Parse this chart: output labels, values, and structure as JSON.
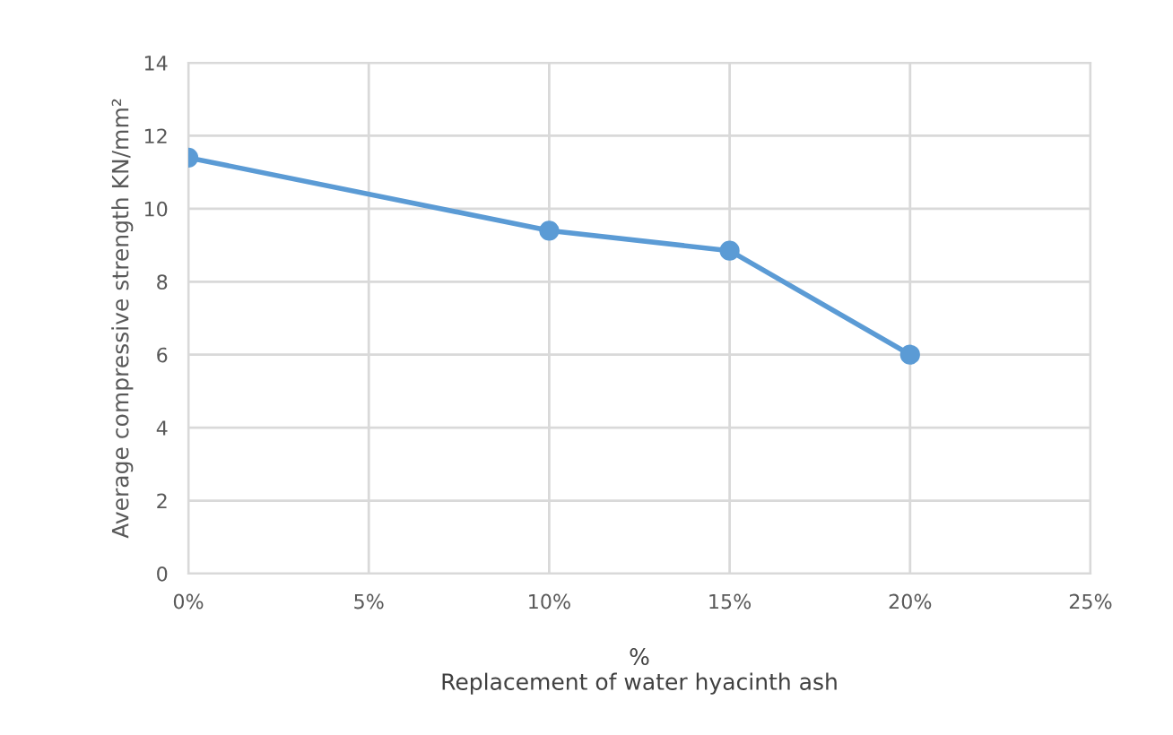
{
  "chart_data": {
    "type": "line",
    "xlabel": "%\nReplacement of water hyacinth ash",
    "ylabel": "Average compressive strength KN/mm²",
    "x": [
      0,
      10,
      15,
      20
    ],
    "series": [
      {
        "color": "#5b9bd5",
        "values": [
          11.4,
          9.4,
          8.85,
          6.0
        ]
      }
    ],
    "xlim": [
      0,
      25
    ],
    "xticks": [
      {
        "value": 0,
        "label": "0%"
      },
      {
        "value": 5,
        "label": "5%"
      },
      {
        "value": 10,
        "label": "10%"
      },
      {
        "value": 15,
        "label": "15%"
      },
      {
        "value": 20,
        "label": "20%"
      },
      {
        "value": 25,
        "label": "25%"
      }
    ],
    "ylim": [
      0,
      14
    ],
    "yticks": [
      0,
      2,
      4,
      6,
      8,
      10,
      12,
      14
    ],
    "grid": true,
    "marker": "circle",
    "line_style": "solid"
  }
}
